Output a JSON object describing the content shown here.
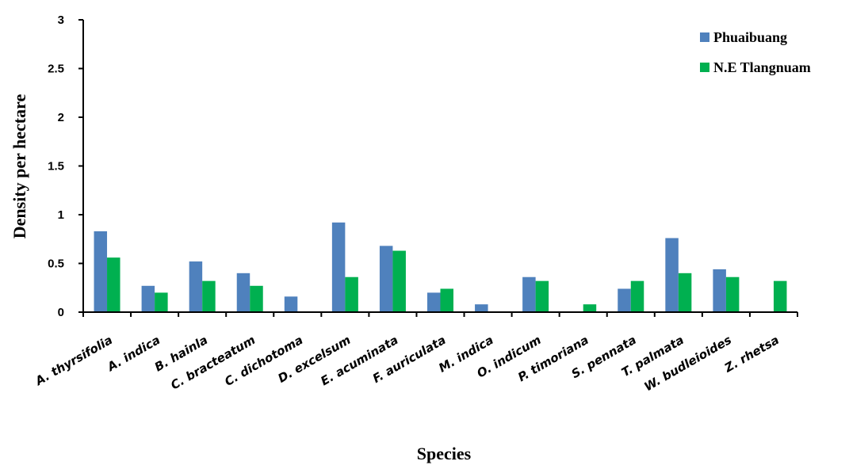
{
  "chart_data": {
    "type": "bar",
    "xlabel": "Species",
    "ylabel": "Density per hectare",
    "ylim": [
      0,
      3
    ],
    "yticks": [
      "0",
      "0.5",
      "1",
      "1.5",
      "2",
      "2.5",
      "3"
    ],
    "grid": false,
    "legend_position": "top-right",
    "categories": [
      "A. thyrsifolia",
      "A. indica",
      "B. hainla",
      "C. bracteatum",
      "C. dichotoma",
      "D.  excelsum",
      "E. acuminata",
      "F. auriculata",
      "M. indica",
      "O. indicum",
      "P. timoriana",
      "S. pennata",
      "T. palmata",
      "W. budleioides",
      "Z. rhetsa"
    ],
    "series": [
      {
        "name": "Phuaibuang",
        "color": "#4f81bd",
        "values": [
          0.83,
          0.27,
          0.52,
          0.4,
          0.16,
          0.92,
          0.68,
          0.2,
          0.08,
          0.36,
          0,
          0.24,
          0.76,
          0.44,
          0
        ]
      },
      {
        "name": "N.E Tlangnuam",
        "color": "#00b050",
        "values": [
          0.56,
          0.2,
          0.32,
          0.27,
          0,
          0.36,
          0.63,
          0.24,
          0,
          0.32,
          0.08,
          0.32,
          0.4,
          0.36,
          0.32
        ]
      }
    ]
  }
}
